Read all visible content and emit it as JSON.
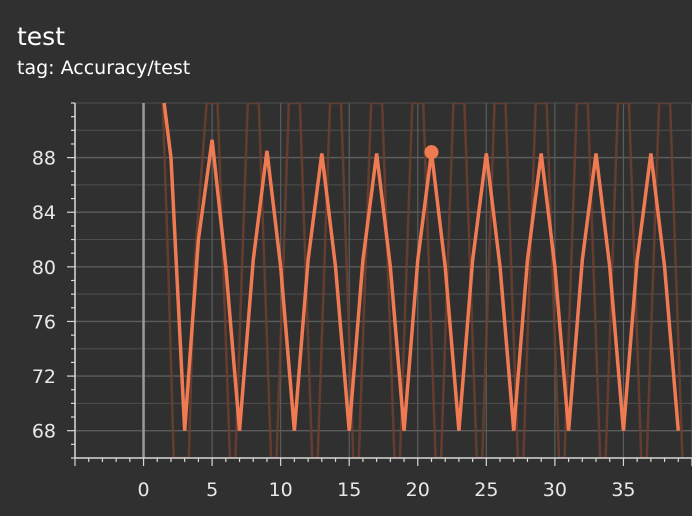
{
  "card": {
    "title": "test",
    "tag_line": "tag: Accuracy/test"
  },
  "colors": {
    "background": "#303030",
    "series": "#f07b52",
    "series_raw": "#6b3f30",
    "grid": "#5c5c5c",
    "zero_line": "#9a9a9a",
    "axis": "#d8d8d8"
  },
  "chart_data": {
    "type": "line",
    "title": "test",
    "xlabel": "",
    "ylabel": "",
    "xlim": [
      -5,
      40
    ],
    "ylim": [
      66,
      92
    ],
    "x_ticks": [
      0,
      5,
      10,
      15,
      20,
      25,
      30,
      35
    ],
    "y_ticks": [
      68,
      72,
      76,
      80,
      84,
      88
    ],
    "grid": true,
    "series": [
      {
        "x": [
          1.5,
          2,
          3,
          4,
          5,
          6,
          7,
          8,
          9,
          10,
          11,
          12,
          13,
          14,
          15,
          16,
          17,
          18,
          19,
          20,
          21,
          22,
          23,
          24,
          25,
          26,
          27,
          28,
          29,
          30,
          31,
          32,
          33,
          34,
          35,
          36,
          37,
          38,
          39
        ],
        "y": [
          92,
          88,
          68,
          82,
          89.3,
          80,
          68,
          80.5,
          88.5,
          80,
          68,
          80.5,
          88.3,
          80,
          68,
          80.5,
          88.3,
          80,
          68,
          80.5,
          88.4,
          80,
          68,
          80.5,
          88.3,
          80,
          68,
          80.5,
          88.3,
          80,
          68,
          80.5,
          88.3,
          80,
          68,
          80.5,
          88.3,
          80,
          68
        ]
      }
    ],
    "raw_series": {
      "x": [
        1.4,
        1.8,
        2.2,
        3.3,
        3.7,
        4.6,
        5.4,
        6.3,
        6.7,
        7.6,
        8.4,
        9.3,
        9.7,
        10.6,
        11.4,
        12.3,
        12.7,
        13.6,
        14.4,
        15.3,
        15.7,
        16.6,
        17.4,
        18.3,
        18.7,
        19.6,
        20.4,
        21.3,
        21.7,
        22.6,
        23.4,
        24.3,
        24.7,
        25.6,
        26.4,
        27.3,
        27.7,
        28.6,
        29.4,
        30.3,
        30.7,
        31.6,
        32.4,
        33.3,
        33.7,
        34.6,
        35.4,
        36.3,
        36.7,
        37.6,
        38.4,
        39.3
      ],
      "y": [
        92,
        80,
        66,
        66,
        80,
        92,
        92,
        66,
        66,
        92,
        92,
        66,
        66,
        92,
        92,
        66,
        66,
        92,
        92,
        66,
        66,
        92,
        92,
        66,
        66,
        92,
        92,
        66,
        66,
        92,
        92,
        66,
        66,
        92,
        92,
        66,
        66,
        92,
        92,
        66,
        66,
        92,
        92,
        66,
        66,
        92,
        92,
        66,
        66,
        92,
        92,
        66
      ]
    },
    "highlight_point": {
      "x": 21,
      "y": 88.4
    }
  }
}
